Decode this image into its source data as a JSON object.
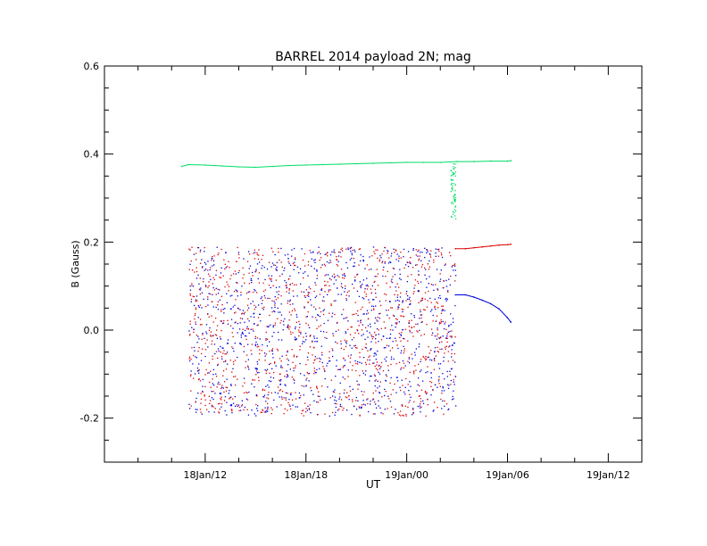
{
  "chart_data": {
    "type": "scatter",
    "title": "BARREL 2014 payload 2N; mag",
    "xlabel": "UT",
    "ylabel": "B (Gauss)",
    "x_unit": "hours since 18Jan/00",
    "xlim": [
      6.0,
      38.0
    ],
    "ylim": [
      -0.3,
      0.6
    ],
    "xticks": [
      {
        "value": 12,
        "label": "18Jan/12"
      },
      {
        "value": 18,
        "label": "18Jan/18"
      },
      {
        "value": 24,
        "label": "19Jan/00"
      },
      {
        "value": 30,
        "label": "19Jan/06"
      },
      {
        "value": 36,
        "label": "19Jan/12"
      }
    ],
    "yticks": [
      {
        "value": -0.2,
        "label": "-0.2"
      },
      {
        "value": 0.0,
        "label": "0.0"
      },
      {
        "value": 0.2,
        "label": "0.2"
      },
      {
        "value": 0.4,
        "label": "0.4"
      },
      {
        "value": 0.6,
        "label": "0.6"
      }
    ],
    "grid": false,
    "series": [
      {
        "color": "#00dd66",
        "x": [
          10.6,
          11.0,
          12.0,
          13.0,
          14.0,
          15.0,
          16.0,
          17.0,
          18.0,
          19.0,
          20.0,
          21.0,
          22.0,
          23.0,
          24.0,
          25.0,
          26.0,
          27.0,
          28.0,
          29.0,
          30.0,
          30.2
        ],
        "y": [
          0.372,
          0.376,
          0.375,
          0.373,
          0.371,
          0.37,
          0.372,
          0.374,
          0.375,
          0.376,
          0.377,
          0.378,
          0.379,
          0.38,
          0.381,
          0.381,
          0.381,
          0.383,
          0.383,
          0.384,
          0.384,
          0.385
        ]
      },
      {
        "color": "#dd0000",
        "x": [
          26.9,
          27.5,
          28.0,
          28.5,
          29.0,
          29.5,
          30.0,
          30.2
        ],
        "y": [
          0.185,
          0.185,
          0.187,
          0.189,
          0.191,
          0.193,
          0.194,
          0.195
        ]
      },
      {
        "color": "#0000dd",
        "x": [
          26.9,
          27.5,
          28.0,
          28.5,
          29.0,
          29.5,
          30.0,
          30.2
        ],
        "y": [
          0.08,
          0.08,
          0.075,
          0.068,
          0.06,
          0.048,
          0.028,
          0.018
        ]
      }
    ]
  }
}
